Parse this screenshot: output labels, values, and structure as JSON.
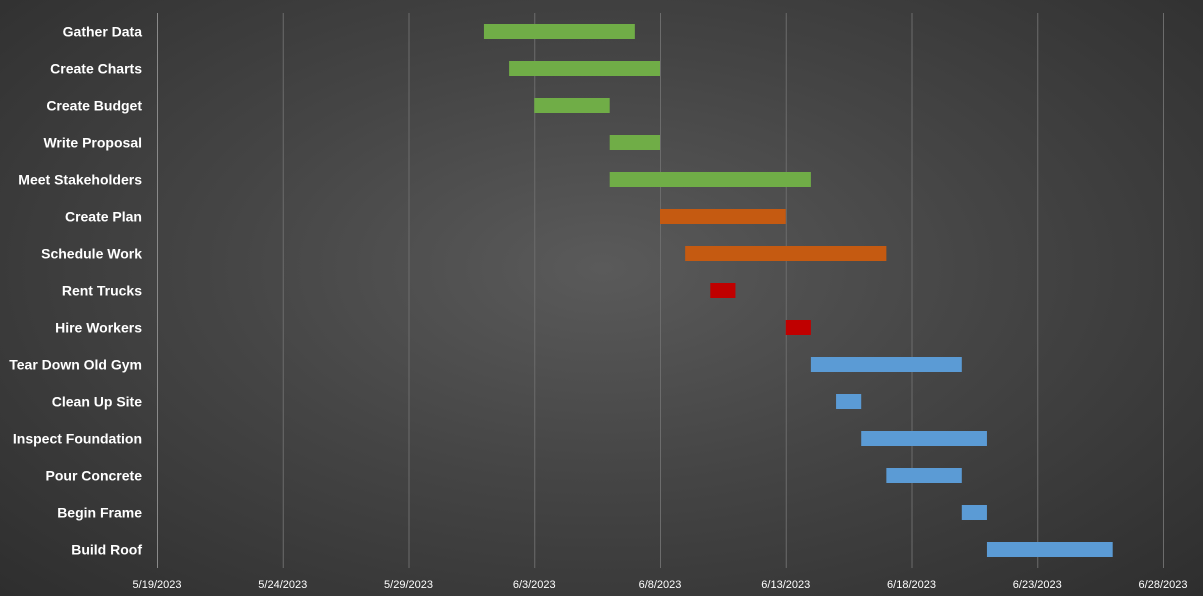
{
  "chart_data": {
    "type": "gantt",
    "x_axis": {
      "type": "date",
      "range": [
        "2023-05-19",
        "2023-06-28"
      ],
      "ticks": [
        {
          "date": "2023-05-19",
          "label": "5/19/2023"
        },
        {
          "date": "2023-05-24",
          "label": "5/24/2023"
        },
        {
          "date": "2023-05-29",
          "label": "5/29/2023"
        },
        {
          "date": "2023-06-03",
          "label": "6/3/2023"
        },
        {
          "date": "2023-06-08",
          "label": "6/8/2023"
        },
        {
          "date": "2023-06-13",
          "label": "6/13/2023"
        },
        {
          "date": "2023-06-18",
          "label": "6/18/2023"
        },
        {
          "date": "2023-06-23",
          "label": "6/23/2023"
        },
        {
          "date": "2023-06-28",
          "label": "6/28/2023"
        }
      ],
      "gridlines": true
    },
    "tasks": [
      {
        "name": "Gather Data",
        "start": "2023-06-01",
        "end": "2023-06-07",
        "color": "#70ad47"
      },
      {
        "name": "Create Charts",
        "start": "2023-06-02",
        "end": "2023-06-08",
        "color": "#70ad47"
      },
      {
        "name": "Create Budget",
        "start": "2023-06-03",
        "end": "2023-06-06",
        "color": "#70ad47"
      },
      {
        "name": "Write Proposal",
        "start": "2023-06-06",
        "end": "2023-06-08",
        "color": "#70ad47"
      },
      {
        "name": "Meet Stakeholders",
        "start": "2023-06-06",
        "end": "2023-06-14",
        "color": "#70ad47"
      },
      {
        "name": "Create Plan",
        "start": "2023-06-08",
        "end": "2023-06-13",
        "color": "#c55a11"
      },
      {
        "name": "Schedule Work",
        "start": "2023-06-09",
        "end": "2023-06-17",
        "color": "#c55a11"
      },
      {
        "name": "Rent Trucks",
        "start": "2023-06-10",
        "end": "2023-06-11",
        "color": "#c00000"
      },
      {
        "name": "Hire Workers",
        "start": "2023-06-13",
        "end": "2023-06-14",
        "color": "#c00000"
      },
      {
        "name": "Tear Down Old Gym",
        "start": "2023-06-14",
        "end": "2023-06-20",
        "color": "#5b9bd5"
      },
      {
        "name": "Clean Up Site",
        "start": "2023-06-15",
        "end": "2023-06-16",
        "color": "#5b9bd5"
      },
      {
        "name": "Inspect Foundation",
        "start": "2023-06-16",
        "end": "2023-06-21",
        "color": "#5b9bd5"
      },
      {
        "name": "Pour Concrete",
        "start": "2023-06-17",
        "end": "2023-06-20",
        "color": "#5b9bd5"
      },
      {
        "name": "Begin Frame",
        "start": "2023-06-20",
        "end": "2023-06-21",
        "color": "#5b9bd5"
      },
      {
        "name": "Build Roof",
        "start": "2023-06-21",
        "end": "2023-06-26",
        "color": "#5b9bd5"
      }
    ]
  }
}
